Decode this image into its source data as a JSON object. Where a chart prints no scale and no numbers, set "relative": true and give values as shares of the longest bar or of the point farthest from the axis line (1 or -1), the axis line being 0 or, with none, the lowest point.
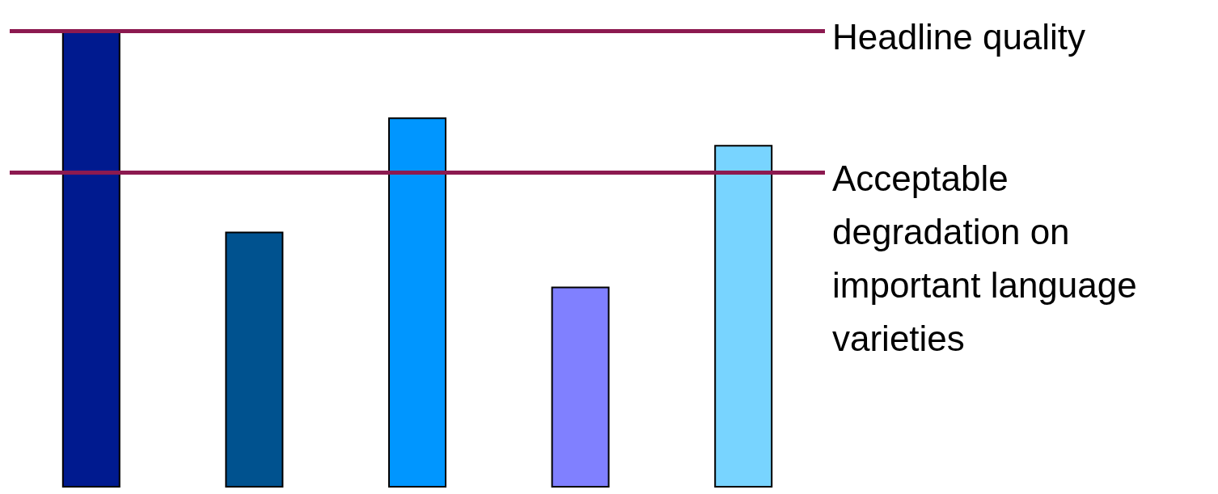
{
  "chart_data": {
    "type": "bar",
    "relative": true,
    "categories": [
      null,
      null,
      null,
      null,
      null
    ],
    "values": [
      1,
      0.56,
      0.81,
      0.44,
      0.75
    ],
    "colors": [
      "#001a8f",
      "#00528f",
      "#0096ff",
      "#8080ff",
      "#78d4ff"
    ],
    "ref_lines": [
      {
        "axis": "y",
        "value": 1,
        "label": "Headline quality",
        "color": "#8c1a50"
      },
      {
        "axis": "y",
        "value": 0.69,
        "label": "Acceptable degradation on important language varieties",
        "color": "#8c1a50"
      }
    ]
  }
}
